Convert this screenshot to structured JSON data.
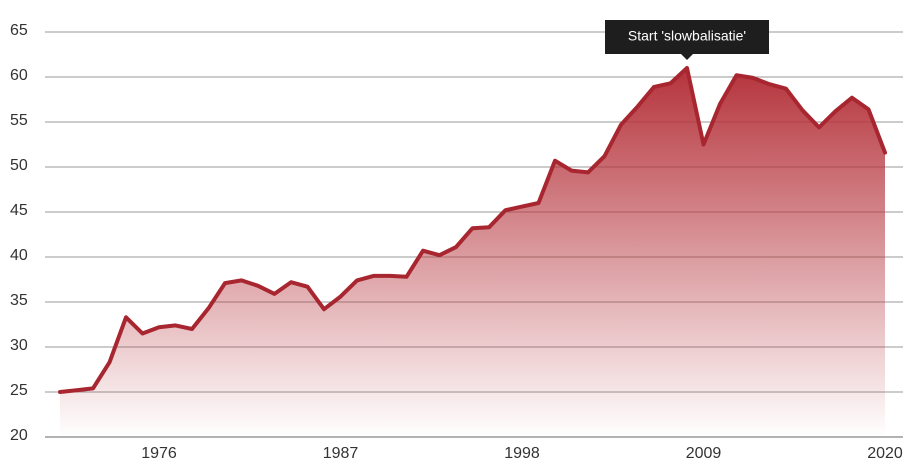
{
  "chart_data": {
    "type": "area",
    "x": [
      1970,
      1971,
      1972,
      1973,
      1974,
      1975,
      1976,
      1977,
      1978,
      1979,
      1980,
      1981,
      1982,
      1983,
      1984,
      1985,
      1986,
      1987,
      1988,
      1989,
      1990,
      1991,
      1992,
      1993,
      1994,
      1995,
      1996,
      1997,
      1998,
      1999,
      2000,
      2001,
      2002,
      2003,
      2004,
      2005,
      2006,
      2007,
      2008,
      2009,
      2010,
      2011,
      2012,
      2013,
      2014,
      2015,
      2016,
      2017,
      2018,
      2019,
      2020
    ],
    "values": [
      25.0,
      25.2,
      25.4,
      28.3,
      33.3,
      31.5,
      32.2,
      32.4,
      32.0,
      34.3,
      37.1,
      37.4,
      36.8,
      35.9,
      37.2,
      36.7,
      34.2,
      35.6,
      37.4,
      37.9,
      37.9,
      37.8,
      40.7,
      40.2,
      41.1,
      43.2,
      43.3,
      45.2,
      45.6,
      46.0,
      50.7,
      49.6,
      49.4,
      51.2,
      54.7,
      56.7,
      58.9,
      59.3,
      61.0,
      52.5,
      57.0,
      60.2,
      59.9,
      59.2,
      58.7,
      56.3,
      54.4,
      56.2,
      57.7,
      56.4,
      51.6
    ],
    "color": "#a8262f",
    "xlim": [
      1970,
      2020
    ],
    "xticks": [
      1976,
      1987,
      1998,
      2009,
      2020
    ],
    "ylim": [
      20,
      65
    ],
    "yticks": [
      20,
      25,
      30,
      35,
      40,
      45,
      50,
      55,
      60,
      65
    ],
    "grid": true,
    "annotation": {
      "text": "Start 'slowbalisatie'",
      "x": 2008
    }
  }
}
